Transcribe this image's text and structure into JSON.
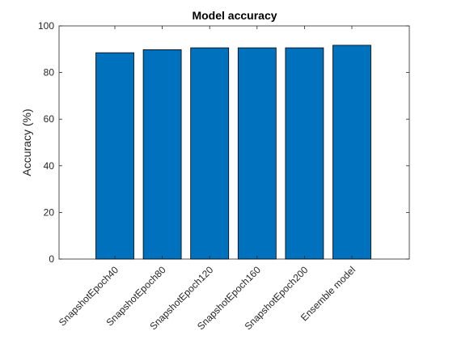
{
  "chart_data": {
    "type": "bar",
    "title": "Model accuracy",
    "xlabel": "",
    "ylabel": "Accuracy (%)",
    "categories": [
      "SnapshotEpoch40",
      "SnapshotEpoch80",
      "SnapshotEpoch120",
      "SnapshotEpoch160",
      "SnapshotEpoch200",
      "Ensemble model"
    ],
    "values": [
      88.5,
      89.8,
      90.6,
      90.6,
      90.6,
      91.7
    ],
    "ylim": [
      0,
      100
    ],
    "yticks": [
      "0",
      "20",
      "40",
      "60",
      "80",
      "100"
    ],
    "grid": false,
    "legend": "none",
    "colors": {
      "bar_fill": "#0072BD",
      "bar_edge": "#000000",
      "axis": "#262626",
      "background": "#FFFFFF"
    }
  }
}
